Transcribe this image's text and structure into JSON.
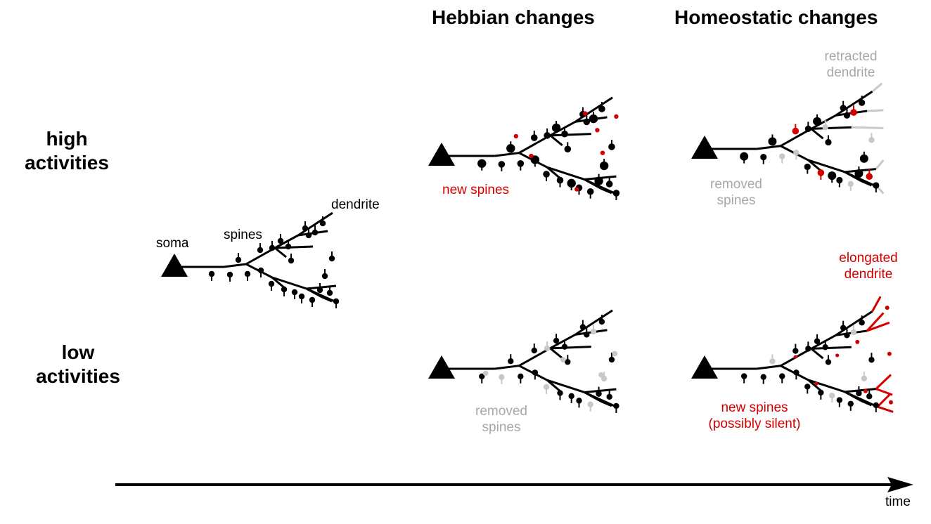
{
  "headers": {
    "hebbian": "Hebbian changes",
    "homeostatic": "Homeostatic changes"
  },
  "rows": {
    "high": {
      "line1": "high",
      "line2": "activities"
    },
    "low": {
      "line1": "low",
      "line2": "activities"
    }
  },
  "labels": {
    "soma": "soma",
    "spines": "spines",
    "dendrite": "dendrite",
    "hebbian_high_new_spines": "new spines",
    "homeo_high_retracted_1": "retracted",
    "homeo_high_retracted_2": "dendrite",
    "homeo_high_removed_1": "removed",
    "homeo_high_removed_2": "spines",
    "homeo_low_elongated_1": "elongated",
    "homeo_low_elongated_2": "dendrite",
    "hebbian_low_removed_1": "removed",
    "hebbian_low_removed_2": "spines",
    "homeo_low_new_spines_1": "new spines",
    "homeo_low_new_spines_2": "(possibly silent)"
  },
  "axis": {
    "label": "time"
  },
  "colors": {
    "black": "#000000",
    "new_spine_red": "#d40000",
    "removed_gray": "#c8c8c8"
  }
}
